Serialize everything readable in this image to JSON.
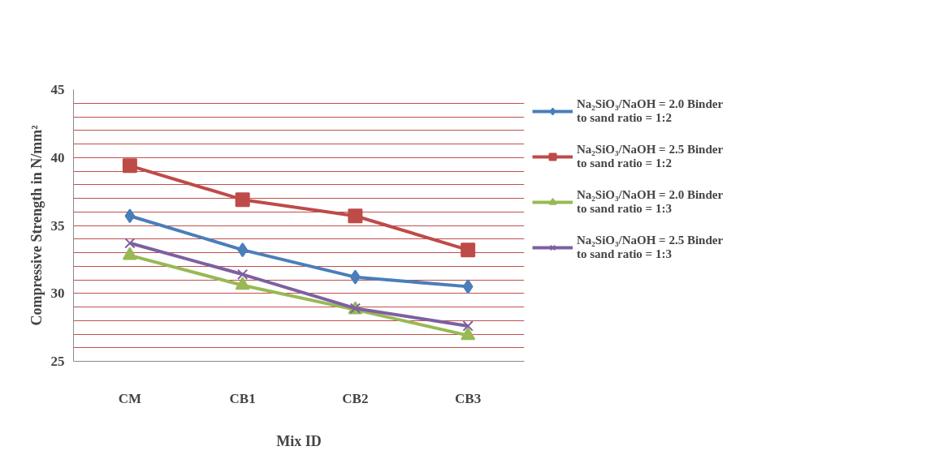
{
  "chart_data": {
    "type": "line",
    "xlabel": "Mix ID",
    "ylabel": "Compressive Strength in N/mm²",
    "categories": [
      "CM",
      "CB1",
      "CB2",
      "CB3"
    ],
    "series": [
      {
        "name": "Na₂SiO₃/NaOH = 2.0 Binder to sand ratio = 1:2",
        "color": "#4a7ebb",
        "marker": "diamond",
        "values": [
          35.7,
          33.2,
          31.2,
          30.5
        ]
      },
      {
        "name": "Na₂SiO₃/NaOH = 2.5 Binder to sand ratio = 1:2",
        "color": "#be4b48",
        "marker": "square",
        "values": [
          39.4,
          36.9,
          35.7,
          33.2
        ]
      },
      {
        "name": "Na₂SiO₃/NaOH = 2.0 Binder to sand ratio = 1:3",
        "color": "#98b954",
        "marker": "triangle",
        "values": [
          32.8,
          30.6,
          28.8,
          26.9
        ]
      },
      {
        "name": "Na₂SiO₃/NaOH = 2.5 Binder to sand ratio = 1:3",
        "color": "#7d60a0",
        "marker": "cross",
        "values": [
          33.7,
          31.4,
          28.9,
          27.6
        ]
      }
    ],
    "ylim": [
      25,
      45
    ],
    "yticks": [
      25,
      {
        "value": 26,
        "label": null
      },
      {
        "value": 27,
        "label": null
      },
      {
        "value": 28,
        "label": null
      },
      {
        "value": 29,
        "label": null
      },
      30,
      {
        "value": 31,
        "label": null
      },
      {
        "value": 32,
        "label": null
      },
      {
        "value": 33,
        "label": null
      },
      {
        "value": 34,
        "label": null
      },
      35,
      {
        "value": 36,
        "label": null
      },
      {
        "value": 37,
        "label": null
      },
      {
        "value": 38,
        "label": null
      },
      {
        "value": 39,
        "label": null
      },
      40,
      {
        "value": 41,
        "label": null
      },
      {
        "value": 42,
        "label": null
      },
      {
        "value": 43,
        "label": null
      },
      {
        "value": 44,
        "label": null
      },
      45
    ],
    "grid": "y",
    "legend": "right",
    "line_style": "solid"
  }
}
